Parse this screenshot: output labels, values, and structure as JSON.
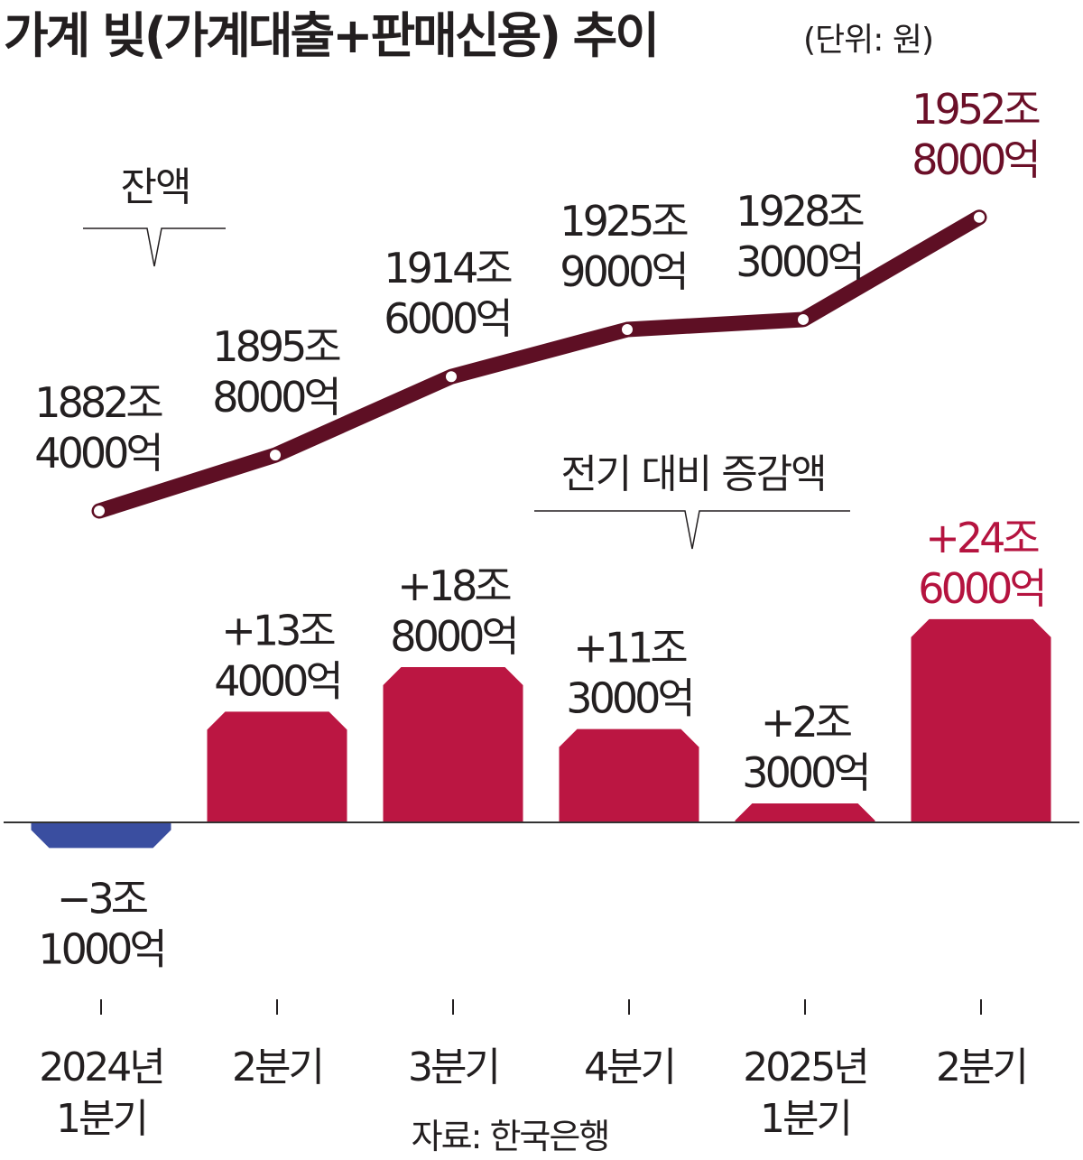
{
  "title": "가계 빚(가계대출+판매신용) 추이",
  "unit": "(단위: 원)",
  "source": "자료: 한국은행",
  "colors": {
    "line": "#5e0f24",
    "bar_positive": "#bb1642",
    "bar_negative": "#3a4ea0",
    "text": "#231f20"
  },
  "chart_data": {
    "type": "bar+line",
    "categories": [
      [
        "2024년",
        "1분기"
      ],
      [
        "2분기"
      ],
      [
        "3분기"
      ],
      [
        "4분기"
      ],
      [
        "2025년",
        "1분기"
      ],
      [
        "2분기"
      ]
    ],
    "line_series": {
      "name": "잔액",
      "values": [
        1882.4,
        1895.8,
        1914.6,
        1925.9,
        1928.3,
        1952.8
      ],
      "labels": [
        [
          "1882조",
          "4000억"
        ],
        [
          "1895조",
          "8000억"
        ],
        [
          "1914조",
          "6000억"
        ],
        [
          "1925조",
          "9000억"
        ],
        [
          "1928조",
          "3000억"
        ],
        [
          "1952조",
          "8000억"
        ]
      ]
    },
    "bar_series": {
      "name": "전기 대비 증감액",
      "values": [
        -3.1,
        13.4,
        18.8,
        11.3,
        2.3,
        24.6
      ],
      "labels": [
        [
          "−3조",
          "1000억"
        ],
        [
          "+13조",
          "4000억"
        ],
        [
          "+18조",
          "8000억"
        ],
        [
          "+11조",
          "3000억"
        ],
        [
          "+2조",
          "3000억"
        ],
        [
          "+24조",
          "6000억"
        ]
      ]
    }
  }
}
